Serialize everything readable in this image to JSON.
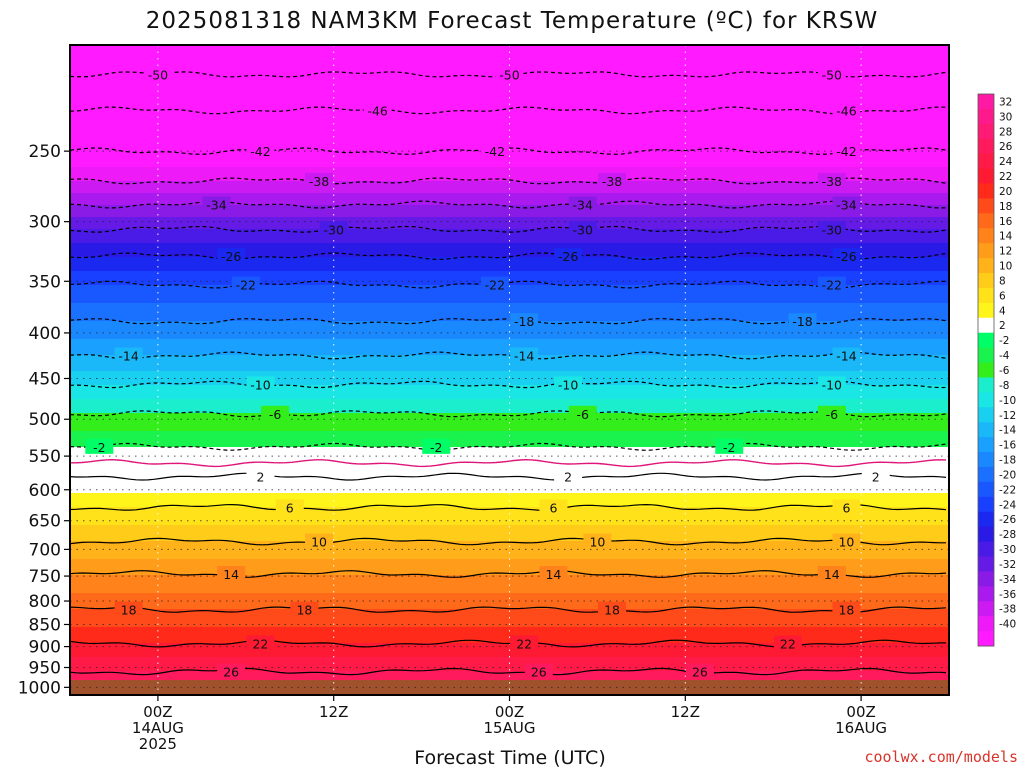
{
  "chart_data": {
    "type": "heatmap",
    "title": "2025081318 NAM3KM Forecast Temperature (ºC) for KRSW",
    "xlabel": "Forecast Time (UTC)",
    "ylabel": "",
    "credit": "coolwx.com/models",
    "x_ticks": [
      {
        "line1": "00Z",
        "line2": "14AUG",
        "line3": "2025",
        "hour": 6
      },
      {
        "line1": "12Z",
        "line2": "",
        "line3": "",
        "hour": 18
      },
      {
        "line1": "00Z",
        "line2": "15AUG",
        "line3": "",
        "hour": 30
      },
      {
        "line1": "12Z",
        "line2": "",
        "line3": "",
        "hour": 42
      },
      {
        "line1": "00Z",
        "line2": "16AUG",
        "line3": "",
        "hour": 54
      }
    ],
    "xlim": [
      0,
      60
    ],
    "y_ticks": [
      1000,
      950,
      900,
      850,
      800,
      750,
      700,
      650,
      600,
      550,
      500,
      450,
      400,
      350,
      300,
      250
    ],
    "ylim": [
      1020,
      190
    ],
    "y_scale": "log",
    "colorbar_levels": [
      32,
      30,
      28,
      26,
      24,
      22,
      20,
      18,
      16,
      14,
      12,
      10,
      8,
      6,
      4,
      2,
      -2,
      -4,
      -6,
      -8,
      -10,
      -12,
      -14,
      -16,
      -18,
      -20,
      -22,
      -24,
      -26,
      -28,
      -30,
      -32,
      -34,
      -36,
      -38,
      -40
    ],
    "colorbar_colors": [
      "#ff1aa3",
      "#ff1a8c",
      "#ff1a75",
      "#ff1a5e",
      "#ff1a47",
      "#ff1a33",
      "#ff2a1a",
      "#ff4a1a",
      "#ff6a1a",
      "#ff821a",
      "#ff9c1a",
      "#ffb21a",
      "#ffcc1a",
      "#ffe21a",
      "#fff51a",
      "#ffffff",
      "#00ff66",
      "#1af24d",
      "#33ee1a",
      "#1aeecc",
      "#1ae6e6",
      "#1ad0f0",
      "#1ab8f8",
      "#1aa0ff",
      "#1a88ff",
      "#1a70ff",
      "#1a58ff",
      "#1a40ff",
      "#1a28f0",
      "#2a1ae6",
      "#4a1ae6",
      "#661ae6",
      "#8a1ae6",
      "#aa1aee",
      "#cc1af2",
      "#ee1af7",
      "#ff1aff"
    ],
    "contours_dashed": [
      {
        "value": -50,
        "p": 205,
        "labels": [
          6,
          30,
          52
        ]
      },
      {
        "value": -46,
        "p": 225,
        "labels": [
          21,
          53
        ]
      },
      {
        "value": -42,
        "p": 250,
        "labels": [
          13,
          29,
          53
        ]
      },
      {
        "value": -38,
        "p": 270,
        "labels": [
          17,
          37,
          52
        ]
      },
      {
        "value": -34,
        "p": 287,
        "labels": [
          10,
          35,
          53
        ]
      },
      {
        "value": -30,
        "p": 306,
        "labels": [
          18,
          35,
          52
        ]
      },
      {
        "value": -26,
        "p": 328,
        "labels": [
          11,
          34,
          53
        ]
      },
      {
        "value": -22,
        "p": 353,
        "labels": [
          12,
          29,
          52
        ]
      },
      {
        "value": -18,
        "p": 388,
        "labels": [
          31,
          50
        ]
      },
      {
        "value": -14,
        "p": 424,
        "labels": [
          4,
          31,
          53
        ]
      },
      {
        "value": -10,
        "p": 457,
        "labels": [
          13,
          34,
          52
        ]
      },
      {
        "value": -6,
        "p": 493,
        "labels": [
          14,
          35,
          52
        ]
      },
      {
        "value": -2,
        "p": 537,
        "labels": [
          2,
          25,
          45
        ]
      }
    ],
    "contours_solid": [
      {
        "value": 2,
        "p": 580,
        "labels": [
          13,
          34,
          55
        ]
      },
      {
        "value": 6,
        "p": 628,
        "labels": [
          15,
          33,
          53
        ]
      },
      {
        "value": 10,
        "p": 686,
        "labels": [
          17,
          36,
          53
        ]
      },
      {
        "value": 14,
        "p": 746,
        "labels": [
          11,
          33,
          52
        ]
      },
      {
        "value": 18,
        "p": 818,
        "labels": [
          4,
          16,
          37,
          53
        ]
      },
      {
        "value": 22,
        "p": 893,
        "labels": [
          13,
          31,
          49
        ]
      },
      {
        "value": 26,
        "p": 960,
        "labels": [
          11,
          32,
          43
        ]
      }
    ],
    "freezing_level_p": 560,
    "surface_color": "#a0522d",
    "grid": true
  }
}
